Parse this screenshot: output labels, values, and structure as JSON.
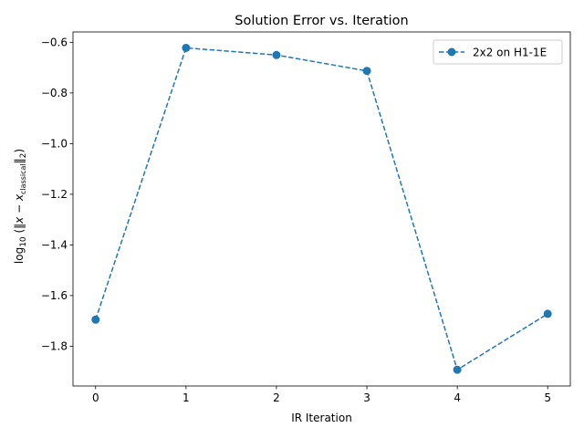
{
  "chart_data": {
    "type": "line",
    "title": "Solution Error vs. Iteration",
    "xlabel": "IR Iteration",
    "ylabel_parts": {
      "prefix": "log",
      "base": "10",
      "open": " (‖",
      "var": "x",
      "minus": " − ",
      "var2": "x",
      "sub": "classical",
      "close": "‖",
      "norm_sub": "2",
      "end": ")"
    },
    "x": [
      0,
      1,
      2,
      3,
      4,
      5
    ],
    "series": [
      {
        "name": "2x2 on H1-1E",
        "values": [
          -1.695,
          -0.622,
          -0.65,
          -0.713,
          -1.893,
          -1.672
        ],
        "color": "#1f77b4",
        "linestyle": "dashed",
        "marker": "circle"
      }
    ],
    "xlim": [
      -0.25,
      5.25
    ],
    "ylim": [
      -1.957,
      -0.559
    ],
    "xticks": [
      0,
      1,
      2,
      3,
      4,
      5
    ],
    "xtick_labels": [
      "0",
      "1",
      "2",
      "3",
      "4",
      "5"
    ],
    "yticks": [
      -1.8,
      -1.6,
      -1.4,
      -1.2,
      -1.0,
      -0.8,
      -0.6
    ],
    "ytick_labels": [
      "−1.8",
      "−1.6",
      "−1.4",
      "−1.2",
      "−1.0",
      "−0.8",
      "−0.6"
    ],
    "grid": false,
    "legend_position": "top-right"
  }
}
